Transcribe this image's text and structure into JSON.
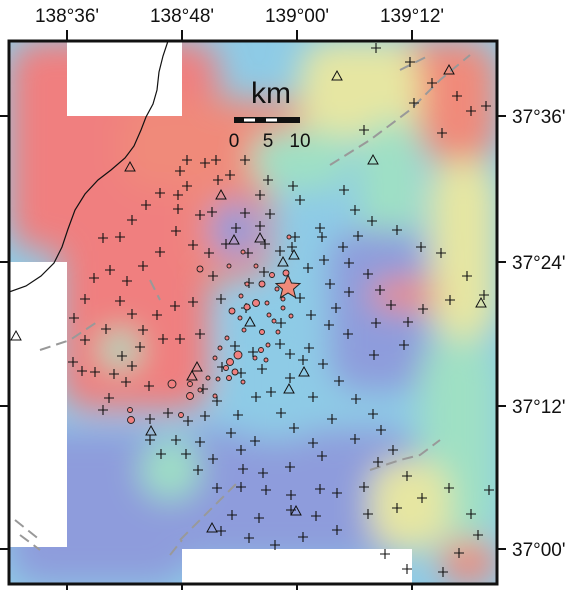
{
  "map": {
    "longitude_labels": [
      "138°36'",
      "138°48'",
      "139°00'",
      "139°12'"
    ],
    "latitude_labels": [
      "37°36'",
      "37°24'",
      "37°12'",
      "37°00'"
    ],
    "scale_bar": {
      "unit": "km",
      "labels": [
        "0",
        "5",
        "10"
      ]
    },
    "colors": {
      "low": "#8e9cdc",
      "mid_low": "#8ecbe6",
      "mid": "#9fe0c4",
      "mid_high": "#e6e6a2",
      "high": "#f08a7a",
      "very_high": "#f07f7f",
      "fault_line": "#999999",
      "coastline": "#111111",
      "event_fill": "#f08080",
      "mainshock_fill": "#f08a7a"
    },
    "symbols": {
      "station_marker": "plus-icon",
      "other_station_marker": "triangle-icon",
      "aftershock_marker": "circle-icon",
      "mainshock_marker": "star-icon"
    }
  }
}
